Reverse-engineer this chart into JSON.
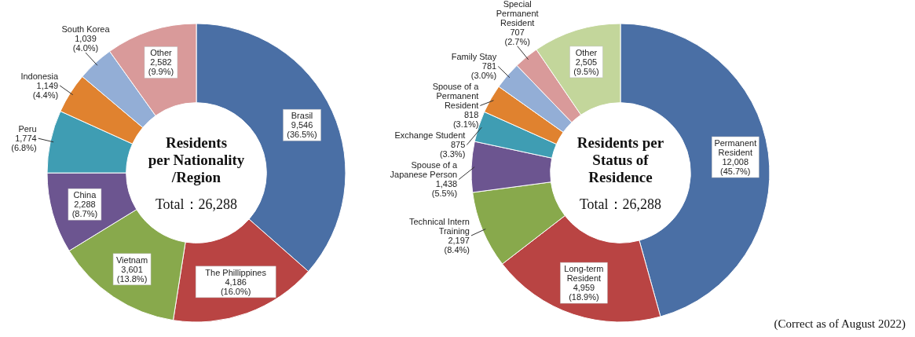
{
  "chart_data": [
    {
      "type": "donut",
      "title": "Residents\nper Nationality\n/Region",
      "subtitle": "Total：26,288",
      "categories": [
        "Brasil",
        "The Phillippines",
        "Vietnam",
        "China",
        "Peru",
        "Indonesia",
        "South Korea",
        "Other"
      ],
      "values": [
        9546,
        4186,
        3601,
        2288,
        1774,
        1149,
        1039,
        2582
      ],
      "value_labels": [
        "9,546\n(36.5%)",
        "4,186\n(16.0%)",
        "3,601\n(13.8%)",
        "2,288\n(8.7%)",
        "1,774\n(6.8%)",
        "1,149\n(4.4%)",
        "1,039\n(4.0%)",
        "2,582\n(9.9%)"
      ],
      "colors": [
        "#4a6fa5",
        "#b94443",
        "#88a94c",
        "#6c5590",
        "#3f9db3",
        "#e0822f",
        "#93aed6",
        "#d99a9a"
      ]
    },
    {
      "type": "donut",
      "title": "Residents per\nStatus of\nResidence",
      "subtitle": "Total：26,288",
      "categories": [
        "Permanent Resident",
        "Long-term Resident",
        "Technical Intern Training",
        "Spouse of a Japanese Person",
        "Exchange Student",
        "Spouse of a Permanent Resident",
        "Family Stay",
        "Special Permanent Resident",
        "Other"
      ],
      "values": [
        12008,
        4959,
        2197,
        1438,
        875,
        818,
        781,
        707,
        2505
      ],
      "value_labels": [
        "12,008\n(45.7%)",
        "4,959\n(18.9%)",
        "2,197\n(8.4%)",
        "1,438\n(5.5%)",
        "875\n(3.3%)",
        "818\n(3.1%)",
        "781\n(3.0%)",
        "707\n(2.7%)",
        "2,505\n(9.5%)"
      ],
      "colors": [
        "#4a6fa5",
        "#b94443",
        "#88a94c",
        "#6c5590",
        "#3f9db3",
        "#e0822f",
        "#93aed6",
        "#d99a9a",
        "#c3d69b"
      ],
      "annotations": [
        "(Correct as of August 2022)"
      ]
    }
  ]
}
